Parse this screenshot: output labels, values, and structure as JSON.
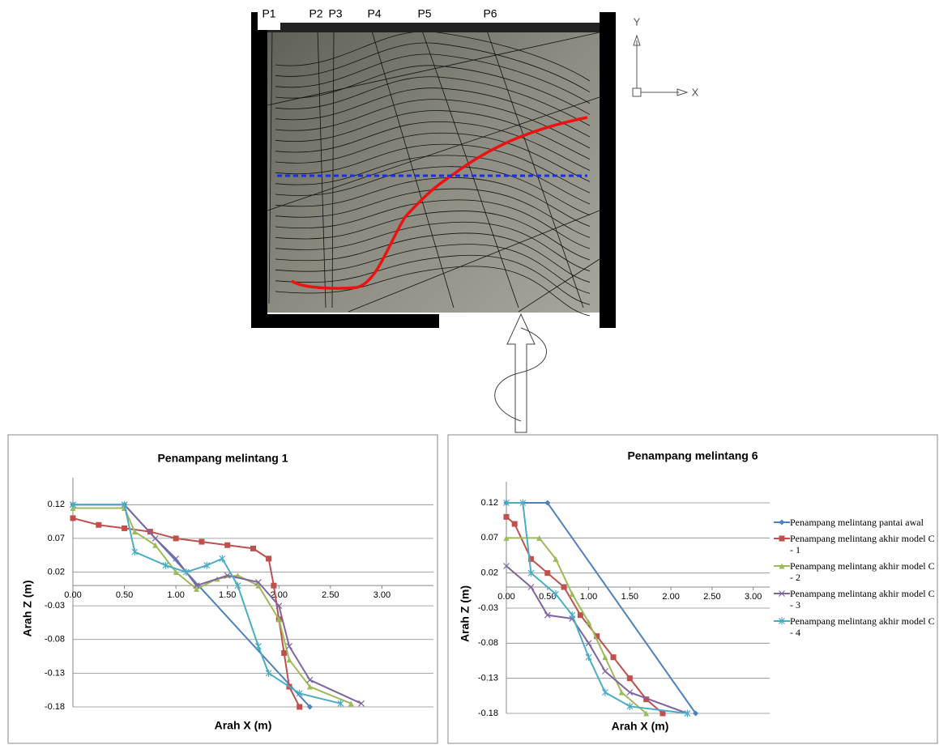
{
  "diagram": {
    "profile_labels": [
      "P1",
      "P2",
      "P3",
      "P4",
      "P5",
      "P6"
    ],
    "axis_y": "Y",
    "axis_x": "X"
  },
  "chart_data": [
    {
      "type": "line",
      "title": "Penampang melintang 1",
      "x_label": "Arah  X (m)",
      "y_label": "Arah  Z (m)",
      "xlim": [
        0,
        3.5
      ],
      "ylim": [
        -0.18,
        0.16
      ],
      "xticks": [
        {
          "value": 0,
          "label": "0.00"
        },
        {
          "value": 0.5,
          "label": "0.50"
        },
        {
          "value": 1,
          "label": "1.00"
        },
        {
          "value": 1.5,
          "label": "1.50"
        },
        {
          "value": 2,
          "label": "2.00"
        },
        {
          "value": 2.5,
          "label": "2.50"
        },
        {
          "value": 3,
          "label": "3.00"
        }
      ],
      "yticks": [
        0.12,
        0.07,
        0.02,
        -0.03,
        -0.08,
        -0.13,
        -0.18
      ],
      "grid": true,
      "series": [
        {
          "color": "#4f81bd",
          "marker": "diamond",
          "x": [
            0,
            0.5,
            2.3
          ],
          "values": [
            0.12,
            0.12,
            -0.18
          ]
        },
        {
          "color": "#c0504d",
          "marker": "square",
          "x": [
            0,
            0.25,
            0.5,
            0.75,
            1.0,
            1.25,
            1.5,
            1.75,
            1.9,
            1.95,
            2.0,
            2.05,
            2.1,
            2.2
          ],
          "values": [
            0.1,
            0.09,
            0.085,
            0.08,
            0.07,
            0.065,
            0.06,
            0.055,
            0.04,
            0.0,
            -0.05,
            -0.1,
            -0.15,
            -0.18
          ]
        },
        {
          "color": "#9bbb59",
          "marker": "triangle",
          "x": [
            0,
            0.5,
            0.6,
            0.8,
            1.0,
            1.2,
            1.4,
            1.6,
            1.8,
            2.0,
            2.1,
            2.3,
            2.7
          ],
          "values": [
            0.115,
            0.115,
            0.08,
            0.06,
            0.02,
            -0.005,
            0.01,
            0.015,
            0.0,
            -0.05,
            -0.11,
            -0.15,
            -0.175
          ]
        },
        {
          "color": "#8064a2",
          "marker": "x",
          "x": [
            0,
            0.5,
            0.8,
            1.0,
            1.2,
            1.5,
            1.8,
            2.0,
            2.1,
            2.3,
            2.8
          ],
          "values": [
            0.12,
            0.12,
            0.07,
            0.04,
            0.0,
            0.015,
            0.005,
            -0.03,
            -0.09,
            -0.14,
            -0.175
          ]
        },
        {
          "color": "#4bacc6",
          "marker": "star",
          "x": [
            0,
            0.5,
            0.6,
            0.9,
            1.1,
            1.3,
            1.45,
            1.6,
            1.8,
            1.9,
            2.2,
            2.6
          ],
          "values": [
            0.12,
            0.12,
            0.05,
            0.03,
            0.02,
            0.03,
            0.04,
            0.0,
            -0.09,
            -0.13,
            -0.16,
            -0.175
          ]
        }
      ]
    },
    {
      "type": "line",
      "title": "Penampang melintang 6",
      "x_label": "Arah  X (m)",
      "y_label": "Arah  Z (m)",
      "xlim": [
        0,
        3.2
      ],
      "ylim": [
        -0.18,
        0.15
      ],
      "xticks": [
        {
          "value": 0,
          "label": "0.00"
        },
        {
          "value": 0.5,
          "label": "0.50"
        },
        {
          "value": 1,
          "label": "1.00"
        },
        {
          "value": 1.5,
          "label": "1.50"
        },
        {
          "value": 2,
          "label": "2.00"
        },
        {
          "value": 2.5,
          "label": "2.50"
        },
        {
          "value": 3,
          "label": "3.00"
        }
      ],
      "yticks": [
        0.12,
        0.07,
        0.02,
        -0.03,
        -0.08,
        -0.13,
        -0.18
      ],
      "grid": true,
      "legend": "right",
      "series": [
        {
          "name": "Penampang melintang pantai awal",
          "color": "#4f81bd",
          "marker": "diamond",
          "x": [
            0,
            0.5,
            2.3
          ],
          "values": [
            0.12,
            0.12,
            -0.18
          ]
        },
        {
          "name": "Penampang melintang akhir model C - 1",
          "color": "#c0504d",
          "marker": "square",
          "x": [
            0,
            0.1,
            0.3,
            0.5,
            0.7,
            0.9,
            1.1,
            1.3,
            1.5,
            1.7,
            1.9
          ],
          "values": [
            0.1,
            0.09,
            0.04,
            0.02,
            0.0,
            -0.04,
            -0.07,
            -0.1,
            -0.13,
            -0.16,
            -0.18
          ]
        },
        {
          "name": "Penampang melintang akhir model C - 2",
          "color": "#9bbb59",
          "marker": "triangle",
          "x": [
            0,
            0.4,
            0.6,
            0.8,
            1.0,
            1.2,
            1.4,
            1.7
          ],
          "values": [
            0.07,
            0.07,
            0.04,
            -0.01,
            -0.05,
            -0.1,
            -0.15,
            -0.18
          ]
        },
        {
          "name": "Penampang melintang akhir model C - 3",
          "color": "#8064a2",
          "marker": "x",
          "x": [
            0,
            0.3,
            0.5,
            0.8,
            1.0,
            1.2,
            1.5,
            2.2
          ],
          "values": [
            0.03,
            0.0,
            -0.04,
            -0.045,
            -0.08,
            -0.12,
            -0.15,
            -0.18
          ]
        },
        {
          "name": "Penampang melintang akhir model C - 4",
          "color": "#4bacc6",
          "marker": "star",
          "x": [
            0,
            0.2,
            0.3,
            0.6,
            0.8,
            1.0,
            1.2,
            1.5,
            2.2
          ],
          "values": [
            0.12,
            0.12,
            0.02,
            -0.01,
            -0.04,
            -0.1,
            -0.15,
            -0.17,
            -0.18
          ]
        }
      ]
    }
  ]
}
